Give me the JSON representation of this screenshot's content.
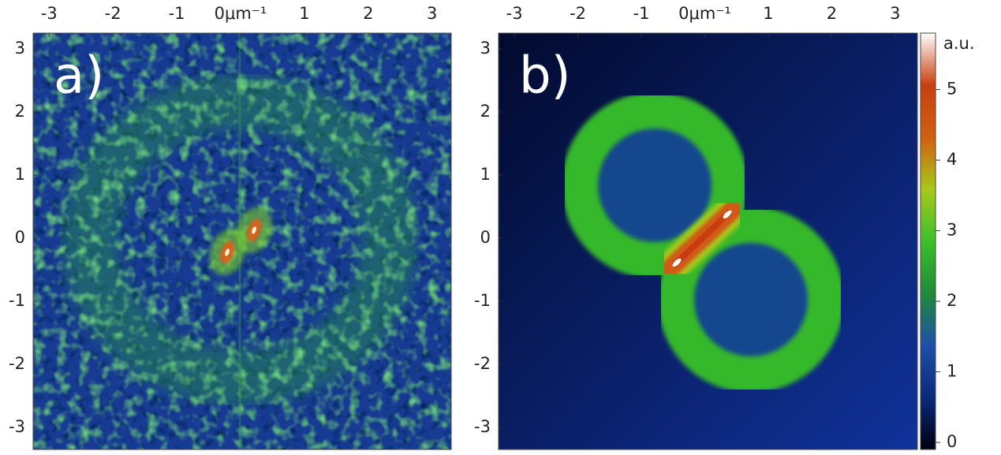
{
  "chart_data": [
    {
      "type": "heatmap",
      "panel_label": "a)",
      "xlim": [
        -3.25,
        3.3
      ],
      "ylim": [
        -3.35,
        3.25
      ],
      "xticks": [
        -3,
        -2,
        -1,
        {
          "value": 0,
          "label": "0μm⁻¹"
        },
        1,
        2,
        3
      ],
      "yticks": [
        -3,
        -2,
        -1,
        0,
        1,
        2,
        3
      ]
    },
    {
      "type": "heatmap",
      "panel_label": "b)",
      "xlim": [
        -3.25,
        3.35
      ],
      "ylim": [
        -3.35,
        3.25
      ],
      "xticks": [
        -3,
        -2,
        -1,
        {
          "value": 0,
          "label": "0μm⁻¹"
        },
        1,
        2,
        3
      ],
      "yticks": [
        -3,
        -2,
        -1,
        0,
        1,
        2,
        3
      ],
      "colorbar": {
        "label": "a.u.",
        "lim": [
          -0.1,
          5.8
        ],
        "ticks": [
          0,
          1,
          2,
          3,
          4,
          5
        ],
        "colors": [
          "#000010",
          "#0a2a7a",
          "#1f4fa8",
          "#1f8a3a",
          "#3cc02a",
          "#a8c81a",
          "#d06010",
          "#c84010",
          "#ffffff"
        ]
      }
    }
  ]
}
